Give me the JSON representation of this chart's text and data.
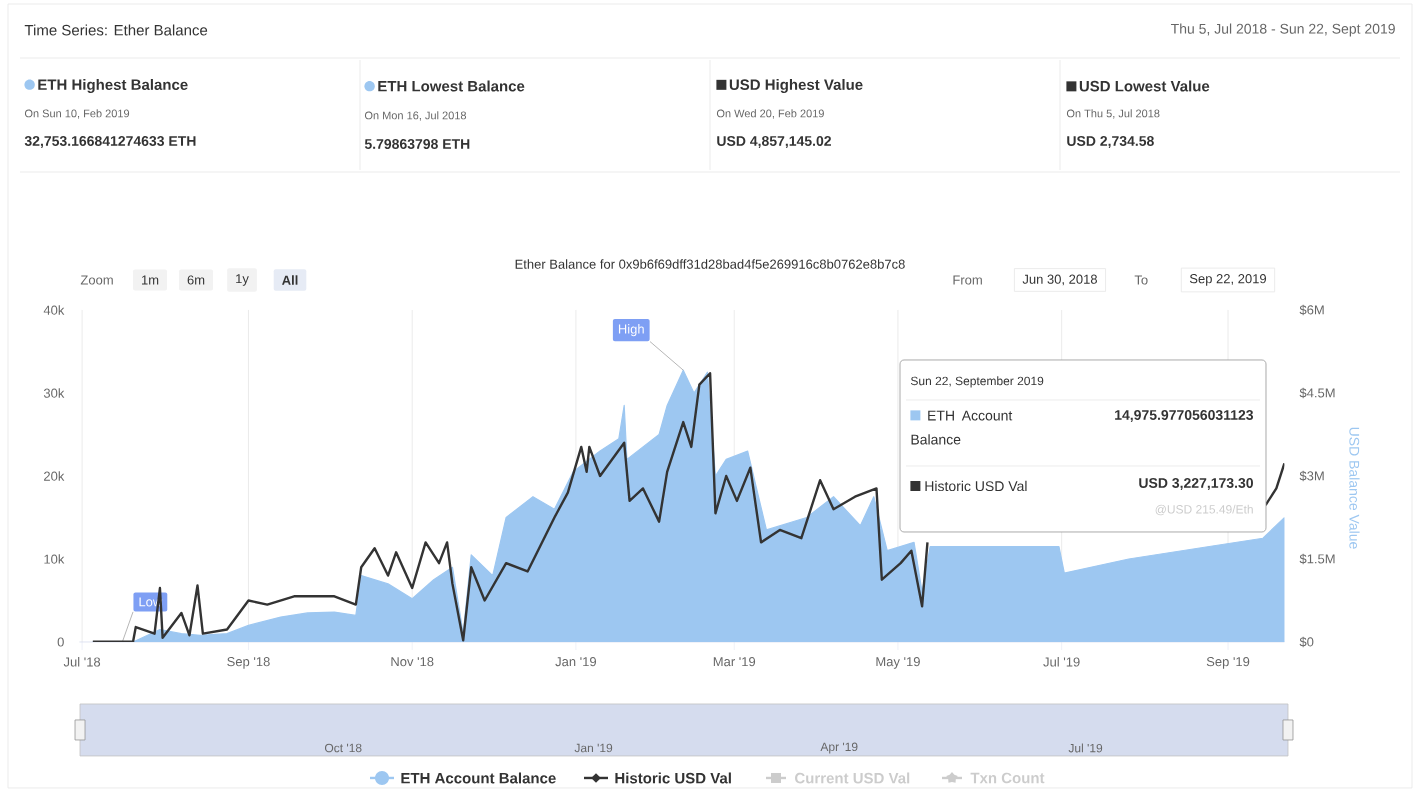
{
  "chart_data": {
    "type": "area",
    "title": "Ether Balance for 0x9b6f69dff31d28bad4f5e269916c8b0762e8b7c8",
    "y2label": "USD Balance Value",
    "xlim": [
      "2018-06-30",
      "2019-09-22"
    ],
    "xticks": [
      {
        "value": "2018-07-01",
        "label": "Jul '18"
      },
      {
        "value": "2018-09-01",
        "label": "Sep '18"
      },
      {
        "value": "2018-11-01",
        "label": "Nov '18"
      },
      {
        "value": "2019-01-01",
        "label": "Jan '19"
      },
      {
        "value": "2019-03-01",
        "label": "Mar '19"
      },
      {
        "value": "2019-05-01",
        "label": "May '19"
      },
      {
        "value": "2019-07-01",
        "label": "Jul '19"
      },
      {
        "value": "2019-09-01",
        "label": "Sep '19"
      }
    ],
    "ylim": [
      0,
      40000
    ],
    "yticks": [
      0,
      {
        "value": 10000,
        "label": "10k"
      },
      {
        "value": 20000,
        "label": "20k"
      },
      {
        "value": 30000,
        "label": "30k"
      },
      {
        "value": 40000,
        "label": "40k"
      }
    ],
    "y2lim": [
      0,
      6000000
    ],
    "y2ticks": [
      {
        "value": 0,
        "label": "$0"
      },
      {
        "value": 1500000,
        "label": "$1.5M"
      },
      {
        "value": 3000000,
        "label": "$3M"
      },
      {
        "value": 4500000,
        "label": "$4.5M"
      },
      {
        "value": 6000000,
        "label": "$6M"
      }
    ],
    "grid": "x",
    "legend": "bottom",
    "series": [
      {
        "name": "ETH Account Balance",
        "color": "#9dc7f1",
        "x": [
          "2018-07-05",
          "2018-07-20",
          "2018-07-30",
          "2018-08-07",
          "2018-08-14",
          "2018-08-24",
          "2018-09-01",
          "2018-09-13",
          "2018-09-23",
          "2018-10-03",
          "2018-10-11",
          "2018-10-13",
          "2018-10-23",
          "2018-11-01",
          "2018-11-09",
          "2018-11-16",
          "2018-11-20",
          "2018-11-23",
          "2018-12-01",
          "2018-12-06",
          "2018-12-16",
          "2018-12-24",
          "2018-12-31",
          "2019-01-10",
          "2019-01-17",
          "2019-01-19",
          "2019-01-20",
          "2019-02-01",
          "2019-02-04",
          "2019-02-10",
          "2019-02-14",
          "2019-02-19",
          "2019-02-22",
          "2019-02-26",
          "2019-03-06",
          "2019-03-13",
          "2019-03-28",
          "2019-04-07",
          "2019-04-17",
          "2019-04-22",
          "2019-04-27",
          "2019-05-07",
          "2019-05-10",
          "2019-05-13",
          "2019-06-06",
          "2019-06-30",
          "2019-07-02",
          "2019-07-26",
          "2019-08-25",
          "2019-09-14",
          "2019-09-22"
        ],
        "values": [
          0,
          0,
          1500,
          1000,
          800,
          1000,
          2000,
          3000,
          3500,
          3600,
          3200,
          8000,
          7000,
          5200,
          7500,
          9000,
          1000,
          10500,
          8000,
          15000,
          17500,
          16000,
          20500,
          23000,
          24500,
          28500,
          22000,
          25000,
          28500,
          32753,
          30000,
          32500,
          20000,
          22000,
          23000,
          13500,
          15000,
          17500,
          14000,
          17500,
          11000,
          12000,
          6000,
          11500,
          11500,
          11500,
          8300,
          10000,
          11500,
          12500,
          14976
        ]
      },
      {
        "name": "Historic USD Val",
        "type": "line",
        "color": "#333333",
        "axis": "y2",
        "x": [
          "2018-07-05",
          "2018-07-20",
          "2018-07-21",
          "2018-07-28",
          "2018-07-30",
          "2018-07-31",
          "2018-08-07",
          "2018-08-10",
          "2018-08-13",
          "2018-08-15",
          "2018-08-24",
          "2018-09-01",
          "2018-09-08",
          "2018-09-18",
          "2018-10-03",
          "2018-10-11",
          "2018-10-13",
          "2018-10-18",
          "2018-10-23",
          "2018-10-26",
          "2018-11-01",
          "2018-11-06",
          "2018-11-11",
          "2018-11-14",
          "2018-11-16",
          "2018-11-20",
          "2018-11-23",
          "2018-11-28",
          "2018-12-06",
          "2018-12-14",
          "2018-12-24",
          "2018-12-29",
          "2019-01-03",
          "2019-01-05",
          "2019-01-06",
          "2019-01-10",
          "2019-01-19",
          "2019-01-21",
          "2019-01-26",
          "2019-02-01",
          "2019-02-04",
          "2019-02-10",
          "2019-02-13",
          "2019-02-16",
          "2019-02-20",
          "2019-02-22",
          "2019-02-26",
          "2019-03-02",
          "2019-03-07",
          "2019-03-11",
          "2019-03-18",
          "2019-03-26",
          "2019-04-02",
          "2019-04-07",
          "2019-04-15",
          "2019-04-23",
          "2019-04-25",
          "2019-05-02",
          "2019-05-06",
          "2019-05-10",
          "2019-05-12",
          "2019-05-14",
          "2019-09-15",
          "2019-09-19",
          "2019-09-22"
        ],
        "values": [
          2735,
          10000,
          270000,
          150000,
          975000,
          75000,
          525000,
          120000,
          1020000,
          150000,
          225000,
          750000,
          675000,
          825000,
          825000,
          675000,
          1350000,
          1695000,
          1200000,
          1620000,
          975000,
          1800000,
          1425000,
          1800000,
          1050000,
          30000,
          1350000,
          750000,
          1425000,
          1275000,
          2250000,
          2700000,
          3525000,
          3075000,
          3525000,
          3000000,
          3600000,
          2550000,
          2775000,
          2175000,
          3075000,
          3975000,
          3525000,
          4650000,
          4857145,
          2325000,
          3000000,
          2550000,
          3150000,
          1800000,
          2025000,
          1875000,
          2925000,
          2400000,
          2625000,
          2775000,
          1125000,
          1425000,
          1650000,
          645000,
          1800000,
          null,
          2475000,
          2775000,
          3227173
        ]
      }
    ],
    "annotations": [
      "Time Series: Ether Balance",
      "Thu 5, Jul 2018 - Sun 22, Sept 2019",
      "ETH Highest Balance",
      "On Sun 10, Feb 2019",
      "32,753.166841274633 ETH",
      "ETH Lowest Balance",
      "On Mon 16, Jul 2018",
      "5.79863798 ETH",
      "USD Highest Value",
      "On Wed 20, Feb 2019",
      "USD 4,857,145.02",
      "USD Lowest Value",
      "On Thu 5, Jul 2018",
      "USD 2,734.58",
      "Zoom",
      "1m",
      "6m",
      "1y",
      "All",
      "From",
      "Jun 30, 2018",
      "To",
      "Sep 22, 2019",
      "Sun 22, September 2019",
      "ETH Account Balance",
      "14,975.977056031123",
      "Historic USD Val",
      "USD 3,227,173.30",
      "@USD 215.49/Eth",
      "Oct '18",
      "Jan '19",
      "Apr '19",
      "Jul '19",
      "Current USD Val",
      "Txn Count",
      {
        "text": "High",
        "x": "2019-02-10",
        "y": 32753
      },
      {
        "text": "Low",
        "x": "2018-07-16",
        "y": 5.8
      }
    ]
  }
}
